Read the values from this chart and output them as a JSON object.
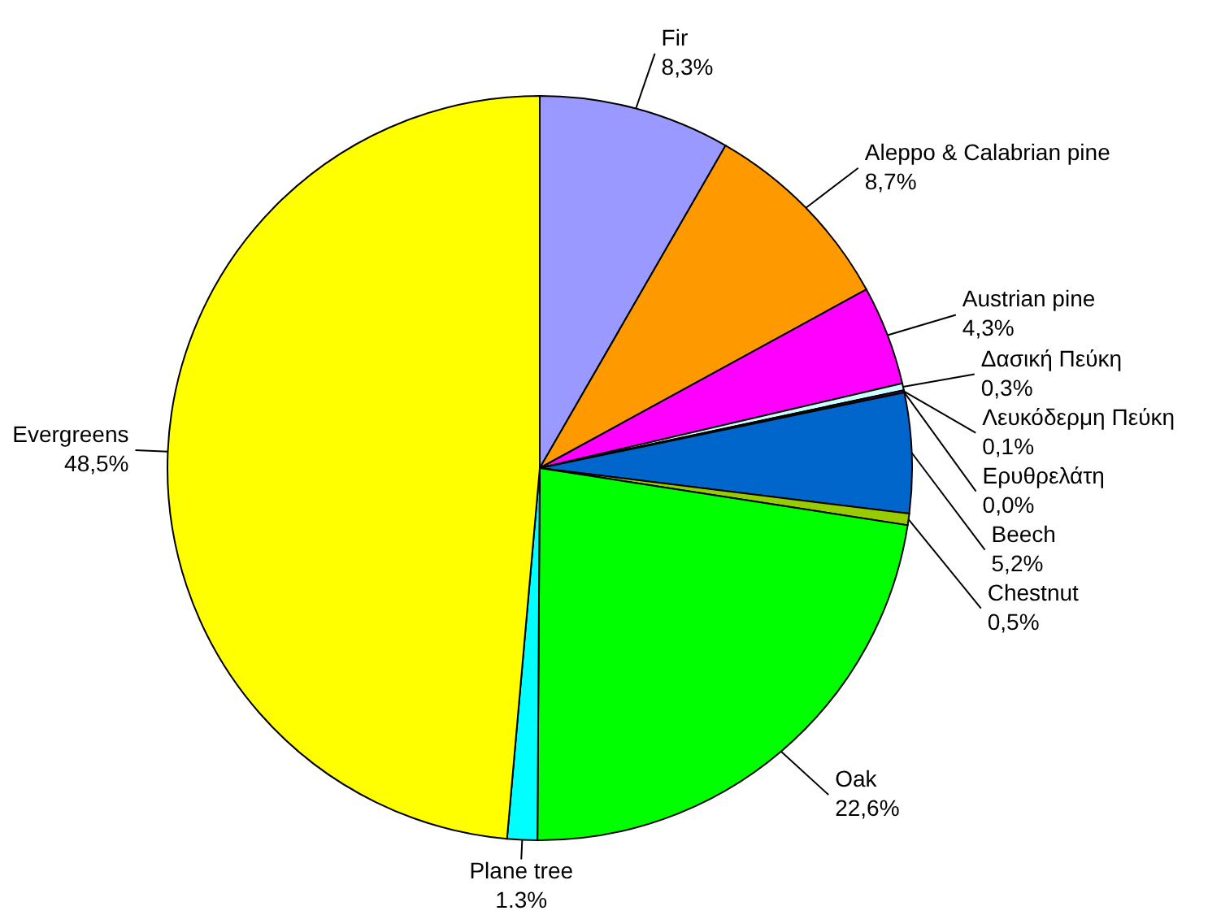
{
  "chart_data": {
    "type": "pie",
    "categories": [
      "Fir",
      "Aleppo & Calabrian pine",
      "Austrian pine",
      "Δασική Πεύκη",
      "Λευκόδερμη Πεύκη",
      "Ερυθρελάτη",
      "Beech",
      "Chestnut",
      "Oak",
      "Plane tree",
      "Evergreens"
    ],
    "values": [
      8.3,
      8.7,
      4.3,
      0.3,
      0.1,
      0.0,
      5.2,
      0.5,
      22.6,
      1.3,
      48.5
    ],
    "colors": [
      "#9999ff",
      "#ff9900",
      "#ff00ff",
      "#ccffff",
      "#660066",
      "#000080",
      "#0066cc",
      "#99cc00",
      "#00ff00",
      "#00ffff",
      "#ffff00"
    ],
    "value_labels": [
      "8,3%",
      "8,7%",
      "4,3%",
      "0,3%",
      "0,1%",
      "0,0%",
      "5,2%",
      "0,5%",
      "22,6%",
      "1.3%",
      "48,5%"
    ]
  }
}
